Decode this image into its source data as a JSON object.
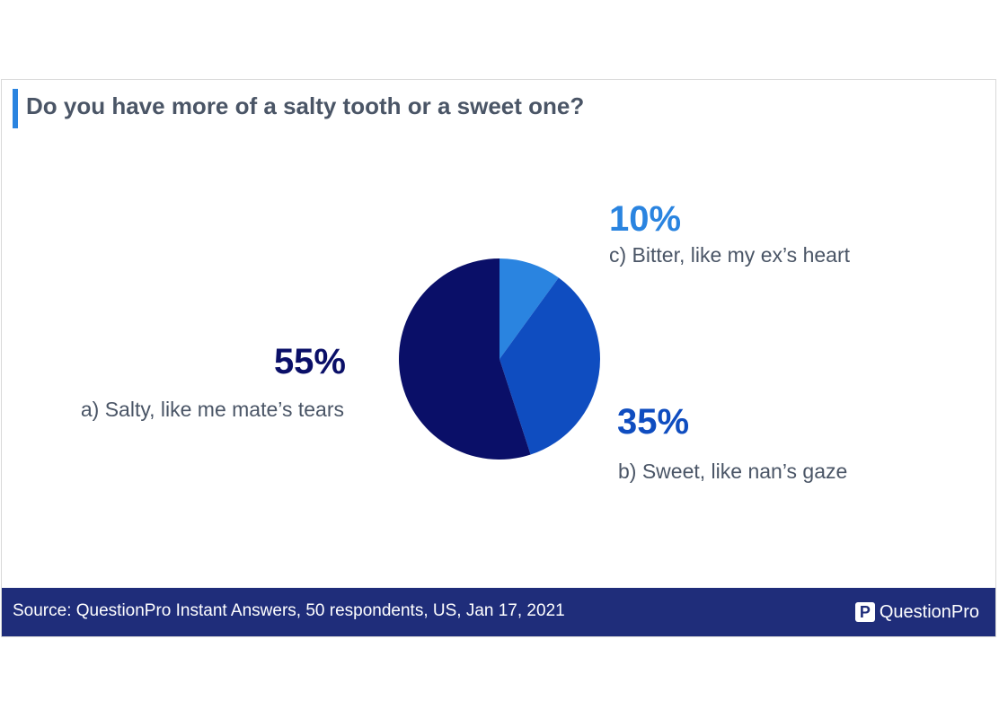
{
  "chart_data": {
    "type": "pie",
    "title": "Do you have more of a salty tooth or a sweet one?",
    "slices": [
      {
        "id": "c",
        "label": "c) Bitter, like my ex’s heart",
        "value": 10,
        "display": "10%",
        "color": "#2a84e0"
      },
      {
        "id": "b",
        "label": "b) Sweet, like nan’s gaze",
        "value": 35,
        "display": "35%",
        "color": "#0f4dc0"
      },
      {
        "id": "a",
        "label": "a) Salty, like me mate’s tears",
        "value": 55,
        "display": "55%",
        "color": "#0a0f68"
      }
    ]
  },
  "footer": {
    "source": "Source: QuestionPro Instant Answers, 50 respondents, US, Jan 17, 2021",
    "brand": "QuestionPro"
  }
}
